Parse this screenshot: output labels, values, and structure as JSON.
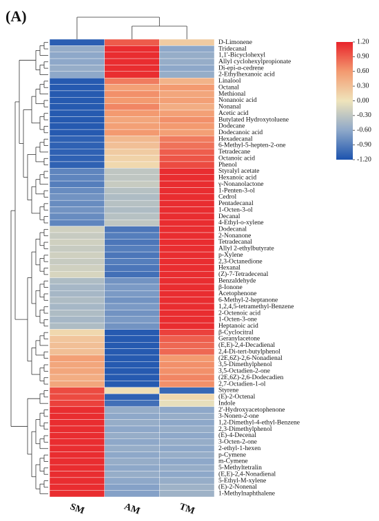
{
  "chart_data": {
    "type": "heatmap",
    "panel_label": "(A)",
    "x": [
      "SM",
      "AM",
      "TM"
    ],
    "y": [
      "D-Limonene",
      "Tridecanal",
      "1,1'-Bicyclohexyl",
      "Allyl cyclohexylpropionate",
      "Di-epi-α-cedrene",
      "2-Ethylhexanoic acid",
      "Linalool",
      "Octanal",
      "Methional",
      "Nonanoic acid",
      "Nonanal",
      "Acetic acid",
      "Butylated Hydroxytoluene",
      "Dodecane",
      "Dodecanoic acid",
      "Hexadecanal",
      "6-Methyl-5-hepten-2-one",
      "Tetradecane",
      "Octanoic acid",
      "Phenol",
      "Styralyl acetate",
      "Hexanoic acid",
      "γ-Nonanolactone",
      "1-Penten-3-ol",
      "Cedrol",
      "Pentadecanal",
      "1-Octen-3-ol",
      "Decanal",
      "4-Ethyl-o-xylene",
      "Dodecanal",
      "2-Nonanone",
      "Tetradecanal",
      "Allyl 2-ethylbutyrate",
      "p-Xylene",
      "2,3-Octanedione",
      "Hexanal",
      "(Z)-7-Tetradecenal",
      "Benzaldehyde",
      "β-Ionone",
      "Acetophenone",
      "6-Methyl-2-heptanone",
      "1,2,4,5-tetramethyl-Benzene",
      "2-Octenoic acid",
      "1-Octen-3-one",
      "Heptanoic acid",
      "β-Cyclocitral",
      "Geranylacetone",
      "(E,E)-2,4-Decadienal",
      "2,4-Di-tert-butylphenol",
      "(2E,6Z)-2,6-Nonadienal",
      "3,5-Dimethylphenol",
      "3,5-Octadien-2-one",
      "(2E,6Z)-2,6-Dodecadien",
      "2,7-Octadien-1-ol",
      "Styrene",
      "(E)-2-Octenal",
      "Indole",
      "2'-Hydroxyacetophenone",
      "3-Nonen-2-one",
      "1,2-Dimethyl-4-ethyl-Benzene",
      "2,3-Dimethylphenol",
      "(E)-4-Decenal",
      "3-Octen-2-one",
      "2-ethyl-1-hexen",
      "p-Cymene",
      "m-Cymene",
      "5-Methyltetralin",
      "(E,E)-2,4-Nonadienal",
      "5-Ethyl-M-xylene",
      "(E)-2-Nonenal",
      "1-Methylnaphthalene"
    ],
    "values": [
      [
        -1.12,
        0.92,
        0.2
      ],
      [
        -0.55,
        1.15,
        -0.6
      ],
      [
        -0.6,
        1.15,
        -0.55
      ],
      [
        -0.6,
        1.15,
        -0.55
      ],
      [
        -0.55,
        1.15,
        -0.6
      ],
      [
        -0.6,
        1.15,
        -0.55
      ],
      [
        -1.15,
        0.75,
        0.4
      ],
      [
        -1.15,
        0.55,
        0.6
      ],
      [
        -1.15,
        0.65,
        0.5
      ],
      [
        -1.15,
        0.6,
        0.55
      ],
      [
        -1.15,
        0.7,
        0.45
      ],
      [
        -1.15,
        0.6,
        0.55
      ],
      [
        -1.15,
        0.5,
        0.65
      ],
      [
        -1.15,
        0.55,
        0.6
      ],
      [
        -1.15,
        0.6,
        0.55
      ],
      [
        -1.1,
        0.35,
        0.75
      ],
      [
        -1.1,
        0.3,
        0.8
      ],
      [
        -1.1,
        0.2,
        0.9
      ],
      [
        -1.1,
        0.15,
        0.95
      ],
      [
        -1.1,
        0.1,
        1.0
      ],
      [
        -0.85,
        -0.3,
        1.15
      ],
      [
        -0.85,
        -0.3,
        1.15
      ],
      [
        -0.9,
        -0.25,
        1.15
      ],
      [
        -0.8,
        -0.35,
        1.15
      ],
      [
        -0.75,
        -0.4,
        1.15
      ],
      [
        -0.8,
        -0.35,
        1.15
      ],
      [
        -0.75,
        -0.4,
        1.15
      ],
      [
        -0.8,
        -0.35,
        1.15
      ],
      [
        -0.85,
        -0.3,
        1.15
      ],
      [
        -0.2,
        -0.95,
        1.15
      ],
      [
        -0.25,
        -0.9,
        1.15
      ],
      [
        -0.2,
        -0.95,
        1.15
      ],
      [
        -0.25,
        -0.9,
        1.15
      ],
      [
        -0.2,
        -0.95,
        1.15
      ],
      [
        -0.25,
        -0.9,
        1.15
      ],
      [
        -0.2,
        -0.95,
        1.15
      ],
      [
        -0.15,
        -1.0,
        1.15
      ],
      [
        -0.4,
        -0.75,
        1.15
      ],
      [
        -0.45,
        -0.7,
        1.15
      ],
      [
        -0.45,
        -0.7,
        1.15
      ],
      [
        -0.4,
        -0.75,
        1.15
      ],
      [
        -0.45,
        -0.7,
        1.15
      ],
      [
        -0.4,
        -0.75,
        1.15
      ],
      [
        -0.45,
        -0.7,
        1.15
      ],
      [
        -0.4,
        -0.75,
        1.15
      ],
      [
        0.1,
        -1.15,
        1.05
      ],
      [
        0.25,
        -1.15,
        0.9
      ],
      [
        0.3,
        -1.15,
        0.85
      ],
      [
        0.3,
        -1.15,
        0.85
      ],
      [
        0.55,
        -1.15,
        0.6
      ],
      [
        0.5,
        -1.15,
        0.65
      ],
      [
        0.5,
        -1.15,
        0.65
      ],
      [
        0.45,
        -1.15,
        0.7
      ],
      [
        0.5,
        -1.15,
        0.65
      ],
      [
        1.0,
        0.05,
        -1.05
      ],
      [
        1.0,
        -1.1,
        0.1
      ],
      [
        1.05,
        -1.0,
        -0.05
      ],
      [
        1.15,
        -0.55,
        -0.6
      ],
      [
        1.15,
        -0.6,
        -0.55
      ],
      [
        1.15,
        -0.55,
        -0.6
      ],
      [
        1.15,
        -0.6,
        -0.55
      ],
      [
        1.15,
        -0.55,
        -0.6
      ],
      [
        1.15,
        -0.6,
        -0.55
      ],
      [
        1.15,
        -0.55,
        -0.6
      ],
      [
        1.15,
        -0.6,
        -0.55
      ],
      [
        1.15,
        -0.55,
        -0.6
      ],
      [
        1.15,
        -0.6,
        -0.55
      ],
      [
        1.15,
        -0.55,
        -0.6
      ],
      [
        1.15,
        -0.6,
        -0.55
      ],
      [
        1.15,
        -0.65,
        -0.5
      ],
      [
        1.15,
        -0.65,
        -0.5
      ]
    ],
    "colorbar": {
      "lim": [
        -1.2,
        1.2
      ],
      "colors": [
        "#1c53ae",
        "#8ea8c9",
        "#efe4bb",
        "#f39a70",
        "#e8232a"
      ],
      "ticks": [
        {
          "value": 1.2,
          "label": "1.20"
        },
        {
          "value": 0.9,
          "label": "0.90"
        },
        {
          "value": 0.6,
          "label": "0.60"
        },
        {
          "value": 0.3,
          "label": "0.30"
        },
        {
          "value": 0,
          "label": "0.00"
        },
        {
          "value": -0.3,
          "label": "-0.30"
        },
        {
          "value": -0.6,
          "label": "-0.60"
        },
        {
          "value": -0.9,
          "label": "-0.90"
        },
        {
          "value": -1.2,
          "label": "-1.20"
        }
      ]
    }
  }
}
